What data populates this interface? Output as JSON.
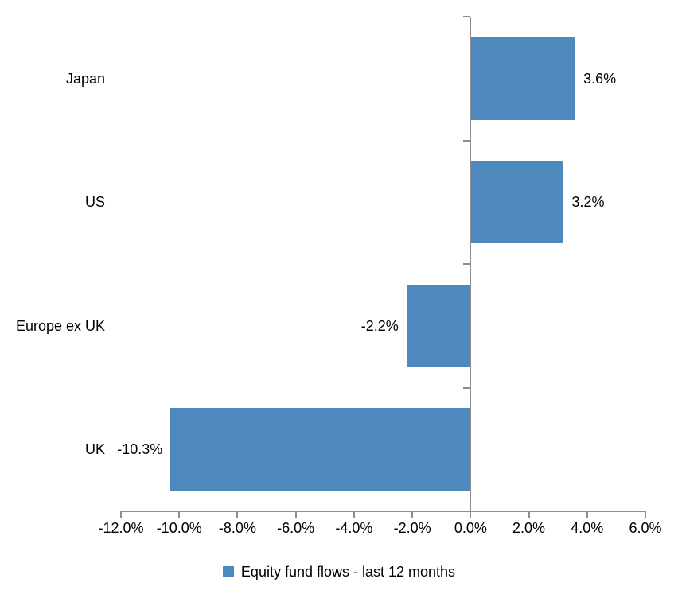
{
  "chart_data": {
    "type": "bar",
    "orientation": "horizontal",
    "title": "",
    "categories": [
      "Japan",
      "US",
      "Europe ex UK",
      "UK"
    ],
    "series": [
      {
        "name": "Equity fund flows - last 12 months",
        "values": [
          3.6,
          3.2,
          -2.2,
          -10.3
        ],
        "value_labels": [
          "3.6%",
          "3.2%",
          "-2.2%",
          "-10.3%"
        ]
      }
    ],
    "xlabel": "",
    "ylabel": "",
    "xlim": [
      -12,
      6
    ],
    "x_tick_step": 2,
    "x_tick_labels": [
      "-12.0%",
      "-10.0%",
      "-8.0%",
      "-6.0%",
      "-4.0%",
      "-2.0%",
      "0.0%",
      "2.0%",
      "4.0%",
      "6.0%"
    ],
    "grid": false,
    "legend_position": "bottom",
    "colors": {
      "bar": "#4E89BE",
      "axis": "#8C8C8C",
      "text": "#000000",
      "background": "#FFFFFF"
    }
  },
  "legend": {
    "label": "Equity fund flows - last 12 months"
  }
}
